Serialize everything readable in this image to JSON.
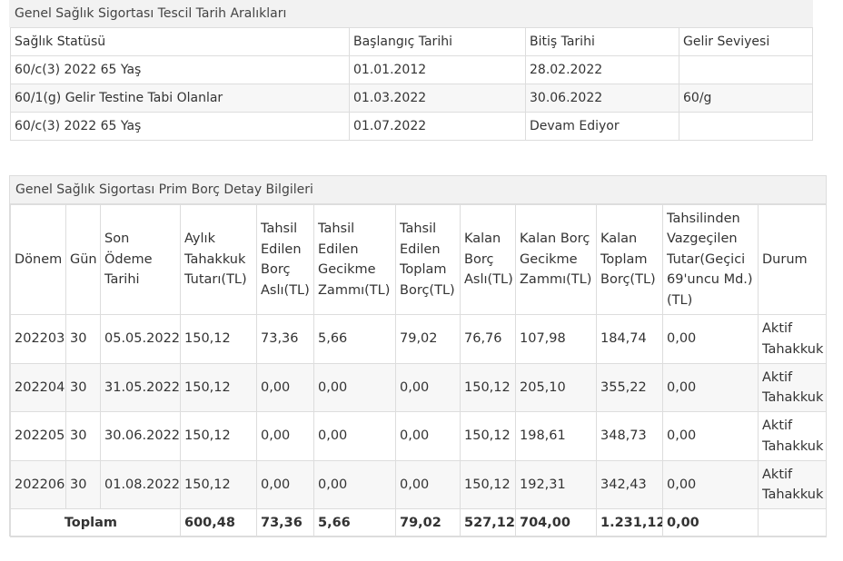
{
  "registration": {
    "title": "Genel Sağlık Sigortası Tescil Tarih Aralıkları",
    "headers": [
      "Sağlık Statüsü",
      "Başlangıç Tarihi",
      "Bitiş Tarihi",
      "Gelir Seviyesi"
    ],
    "rows": [
      [
        "60/c(3) 2022 65 Yaş",
        "01.01.2012",
        "28.02.2022",
        ""
      ],
      [
        "60/1(g) Gelir Testine Tabi Olanlar",
        "01.03.2022",
        "30.06.2022",
        "60/g"
      ],
      [
        "60/c(3) 2022 65 Yaş",
        "01.07.2022",
        "Devam Ediyor",
        ""
      ]
    ]
  },
  "debt": {
    "title": "Genel Sağlık Sigortası Prim Borç Detay Bilgileri",
    "headers": [
      "Dönem",
      "Gün",
      "Son Ödeme Tarihi",
      "Aylık Tahakkuk Tutarı(TL)",
      "Tahsil Edilen Borç Aslı(TL)",
      "Tahsil Edilen Gecikme Zammı(TL)",
      "Tahsil Edilen Toplam Borç(TL)",
      "Kalan Borç Aslı(TL)",
      "Kalan Borç Gecikme Zammı(TL)",
      "Kalan Toplam Borç(TL)",
      "Tahsilinden Vazgeçilen Tutar(Geçici 69'uncu Md.)(TL)",
      "Durum"
    ],
    "rows": [
      [
        "202203",
        "30",
        "05.05.2022",
        "150,12",
        "73,36",
        "5,66",
        "79,02",
        "76,76",
        "107,98",
        "184,74",
        "0,00",
        "Aktif Tahakkuk"
      ],
      [
        "202204",
        "30",
        "31.05.2022",
        "150,12",
        "0,00",
        "0,00",
        "0,00",
        "150,12",
        "205,10",
        "355,22",
        "0,00",
        "Aktif Tahakkuk"
      ],
      [
        "202205",
        "30",
        "30.06.2022",
        "150,12",
        "0,00",
        "0,00",
        "0,00",
        "150,12",
        "198,61",
        "348,73",
        "0,00",
        "Aktif Tahakkuk"
      ],
      [
        "202206",
        "30",
        "01.08.2022",
        "150,12",
        "0,00",
        "0,00",
        "0,00",
        "150,12",
        "192,31",
        "342,43",
        "0,00",
        "Aktif Tahakkuk"
      ]
    ],
    "totals": {
      "label": "Toplam",
      "values": [
        "600,48",
        "73,36",
        "5,66",
        "79,02",
        "527,12",
        "704,00",
        "1.231,12",
        "0,00",
        ""
      ]
    }
  }
}
